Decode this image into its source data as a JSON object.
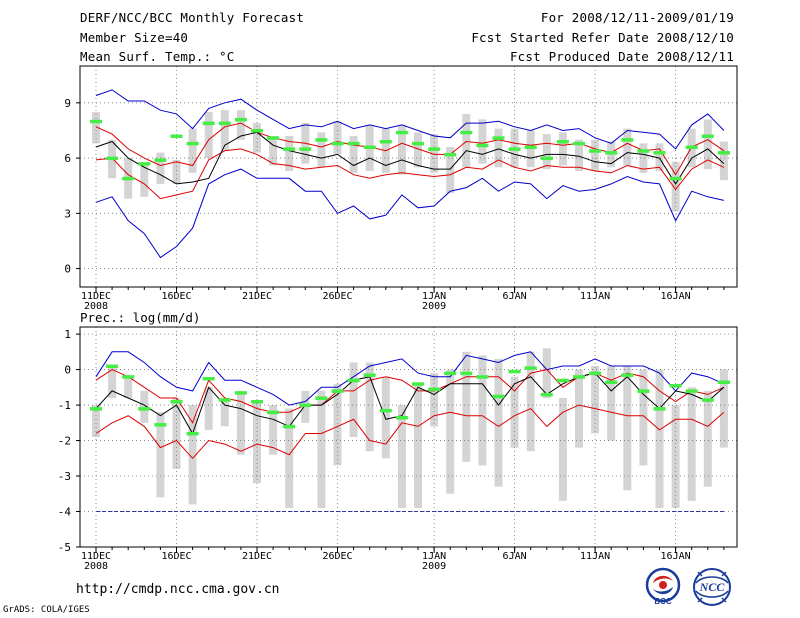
{
  "header": {
    "title": "DERF/NCC/BCC Monthly Forecast",
    "member_size": "Member Size=40",
    "variable": "Mean Surf. Temp.: °C",
    "period": "For 2008/12/11-2009/01/19",
    "started": "Fcst Started Refer Date 2008/12/10",
    "produced": "Fcst Produced Date 2008/12/11"
  },
  "footer": {
    "url": "http://cmdp.ncc.cma.gov.cn",
    "grads": "GrADS: COLA/IGES",
    "logo_left": "BCC",
    "logo_right": "NCC"
  },
  "colors": {
    "max_min": "#0000cc",
    "p25_p75": "#dd0000",
    "mean": "#000000",
    "box": "#d4d4d4",
    "obs": "#44ee44",
    "ref": "#3333aa"
  },
  "chart_data": [
    {
      "type": "line",
      "title": "Mean Surf. Temp.: °C",
      "ylim": [
        -1,
        11
      ],
      "yticks": [
        0,
        3,
        6,
        9
      ],
      "xticks": [
        {
          "day": 0,
          "label": "11DEC",
          "sub": "2008"
        },
        {
          "day": 5,
          "label": "16DEC"
        },
        {
          "day": 10,
          "label": "21DEC"
        },
        {
          "day": 15,
          "label": "26DEC"
        },
        {
          "day": 21,
          "label": "1JAN",
          "sub": "2009"
        },
        {
          "day": 26,
          "label": "6JAN"
        },
        {
          "day": 31,
          "label": "11JAN"
        },
        {
          "day": 36,
          "label": "16JAN"
        }
      ],
      "grid": true,
      "series": [
        {
          "name": "max",
          "values": [
            9.4,
            9.7,
            9.1,
            9.1,
            8.6,
            8.4,
            7.6,
            8.7,
            9.0,
            9.2,
            8.6,
            8.1,
            7.6,
            7.8,
            7.7,
            8.0,
            7.6,
            7.8,
            7.6,
            7.8,
            7.5,
            7.2,
            7.1,
            7.9,
            7.9,
            8.0,
            7.7,
            7.5,
            7.8,
            7.5,
            7.6,
            7.1,
            6.8,
            7.5,
            7.4,
            7.3,
            6.5,
            7.8,
            8.4,
            7.5
          ]
        },
        {
          "name": "p75",
          "values": [
            7.7,
            7.3,
            6.5,
            6.0,
            5.6,
            5.8,
            5.6,
            7.0,
            7.7,
            7.9,
            7.4,
            7.1,
            6.9,
            6.8,
            6.6,
            6.9,
            6.7,
            6.6,
            6.4,
            6.8,
            6.5,
            6.2,
            6.2,
            6.9,
            6.8,
            7.0,
            6.8,
            6.7,
            6.8,
            6.7,
            6.8,
            6.5,
            6.3,
            6.8,
            6.4,
            6.5,
            5.1,
            6.6,
            7.0,
            6.4
          ]
        },
        {
          "name": "mean",
          "values": [
            6.6,
            6.9,
            6.0,
            5.5,
            5.1,
            4.6,
            4.7,
            4.9,
            6.7,
            7.2,
            7.4,
            6.7,
            6.4,
            6.2,
            6.0,
            6.2,
            5.6,
            6.0,
            5.6,
            5.9,
            5.6,
            5.4,
            5.4,
            6.4,
            6.2,
            6.5,
            6.2,
            6.0,
            6.2,
            6.2,
            6.1,
            5.8,
            5.7,
            6.3,
            6.2,
            6.0,
            4.6,
            6.0,
            6.5,
            5.7
          ]
        },
        {
          "name": "p25",
          "values": [
            5.9,
            6.0,
            5.1,
            4.6,
            3.8,
            4.0,
            4.2,
            5.9,
            6.4,
            6.5,
            6.2,
            5.7,
            5.6,
            5.4,
            5.5,
            5.6,
            5.1,
            4.9,
            5.1,
            5.2,
            5.1,
            5.0,
            5.1,
            5.5,
            5.4,
            5.9,
            5.5,
            5.3,
            5.6,
            5.5,
            5.5,
            5.3,
            5.2,
            5.6,
            5.4,
            5.5,
            4.3,
            5.4,
            5.9,
            5.5
          ]
        },
        {
          "name": "min",
          "values": [
            3.6,
            3.9,
            2.6,
            1.9,
            0.6,
            1.2,
            2.2,
            4.6,
            5.1,
            5.4,
            4.9,
            4.9,
            4.9,
            4.2,
            4.2,
            3.0,
            3.4,
            2.7,
            2.9,
            4.0,
            3.3,
            3.4,
            4.2,
            4.4,
            4.9,
            4.2,
            4.7,
            4.6,
            3.8,
            4.5,
            4.2,
            4.3,
            4.6,
            5.0,
            4.7,
            4.6,
            2.6,
            4.2,
            3.9,
            3.7
          ]
        },
        {
          "name": "box_top",
          "values": [
            8.5,
            7.0,
            6.0,
            5.6,
            6.3,
            5.9,
            7.6,
            8.5,
            8.6,
            8.6,
            7.9,
            7.2,
            7.2,
            7.9,
            7.4,
            8.0,
            7.2,
            7.8,
            7.6,
            7.8,
            7.4,
            7.3,
            6.6,
            8.4,
            8.1,
            7.6,
            7.6,
            7.5,
            7.3,
            7.4,
            7.0,
            7.0,
            6.9,
            7.6,
            6.8,
            6.8,
            5.8,
            7.6,
            8.1,
            6.9
          ]
        },
        {
          "name": "box_bottom",
          "values": [
            6.8,
            4.9,
            3.8,
            3.9,
            4.6,
            4.6,
            5.2,
            6.0,
            6.4,
            7.0,
            6.3,
            5.6,
            5.3,
            5.7,
            5.5,
            6.2,
            5.2,
            5.3,
            5.2,
            5.1,
            5.5,
            5.2,
            4.1,
            5.5,
            5.7,
            5.5,
            5.5,
            5.5,
            5.4,
            5.6,
            5.3,
            5.3,
            5.5,
            5.6,
            5.2,
            5.3,
            3.1,
            5.5,
            5.4,
            4.8
          ]
        },
        {
          "name": "obs",
          "values": [
            8.0,
            6.0,
            4.9,
            5.7,
            5.9,
            7.2,
            6.8,
            7.9,
            7.9,
            8.1,
            7.5,
            7.1,
            6.5,
            6.5,
            7.0,
            6.8,
            6.8,
            6.6,
            6.9,
            7.4,
            6.8,
            6.5,
            6.2,
            7.4,
            6.7,
            7.1,
            6.5,
            6.6,
            6.0,
            6.9,
            6.8,
            6.4,
            6.3,
            7.0,
            6.4,
            6.3,
            4.9,
            6.6,
            7.2,
            6.3
          ]
        }
      ]
    },
    {
      "type": "line",
      "title": "Prec.: log(mm/d)",
      "ylim": [
        -5,
        1.2
      ],
      "yticks": [
        -5,
        -4,
        -3,
        -2,
        -1,
        0,
        1
      ],
      "xticks": [
        {
          "day": 0,
          "label": "11DEC",
          "sub": "2008"
        },
        {
          "day": 5,
          "label": "16DEC"
        },
        {
          "day": 10,
          "label": "21DEC"
        },
        {
          "day": 15,
          "label": "26DEC"
        },
        {
          "day": 21,
          "label": "1JAN",
          "sub": "2009"
        },
        {
          "day": 26,
          "label": "6JAN"
        },
        {
          "day": 31,
          "label": "11JAN"
        },
        {
          "day": 36,
          "label": "16JAN"
        }
      ],
      "reference_line": -4,
      "grid": true,
      "series": [
        {
          "name": "max",
          "values": [
            -0.2,
            0.5,
            0.5,
            0.2,
            -0.2,
            -0.5,
            -0.6,
            0.2,
            -0.3,
            -0.3,
            -0.5,
            -0.7,
            -1.0,
            -0.9,
            -0.5,
            -0.5,
            -0.2,
            0.1,
            0.2,
            0.3,
            -0.1,
            -0.2,
            -0.2,
            0.4,
            0.3,
            0.2,
            0.4,
            0.5,
            0.0,
            0.1,
            0.1,
            0.3,
            0.1,
            0.1,
            0.1,
            -0.1,
            -0.6,
            -0.1,
            -0.2,
            -0.4
          ]
        },
        {
          "name": "p75",
          "values": [
            -0.3,
            0.0,
            -0.2,
            -0.5,
            -0.8,
            -0.8,
            -1.5,
            -0.3,
            -0.8,
            -0.9,
            -1.1,
            -1.2,
            -1.2,
            -1.0,
            -1.0,
            -0.6,
            -0.6,
            -0.3,
            -0.2,
            -0.3,
            -0.6,
            -0.6,
            -0.4,
            -0.2,
            -0.2,
            -0.2,
            -0.6,
            -0.1,
            0.0,
            -0.5,
            -0.2,
            -0.1,
            -0.3,
            -0.1,
            -0.2,
            -0.6,
            -0.9,
            -0.6,
            -0.7,
            -0.5
          ]
        },
        {
          "name": "mean",
          "values": [
            -1.1,
            -0.6,
            -0.8,
            -1.0,
            -1.3,
            -1.0,
            -1.8,
            -0.5,
            -1.0,
            -1.1,
            -1.3,
            -1.4,
            -1.6,
            -1.0,
            -1.0,
            -0.7,
            -0.3,
            -0.2,
            -1.4,
            -1.3,
            -0.5,
            -0.7,
            -0.4,
            -0.4,
            -0.4,
            -1.0,
            -0.4,
            -0.2,
            -0.7,
            -0.4,
            -0.2,
            -0.1,
            -0.6,
            -0.2,
            -0.7,
            -1.1,
            -0.6,
            -0.7,
            -0.9,
            -0.5
          ]
        },
        {
          "name": "p25",
          "values": [
            -1.8,
            -1.5,
            -1.3,
            -1.6,
            -2.2,
            -2.0,
            -2.5,
            -2.0,
            -2.1,
            -2.3,
            -2.1,
            -2.2,
            -2.4,
            -1.8,
            -1.8,
            -1.6,
            -1.4,
            -2.0,
            -2.1,
            -1.5,
            -1.6,
            -1.3,
            -1.2,
            -1.3,
            -1.3,
            -1.6,
            -1.3,
            -1.1,
            -1.6,
            -1.2,
            -1.0,
            -1.1,
            -1.2,
            -1.3,
            -1.3,
            -1.7,
            -1.4,
            -1.4,
            -1.6,
            -1.2
          ]
        },
        {
          "name": "box_top",
          "values": [
            -1.0,
            0.1,
            -0.2,
            -0.6,
            -1.2,
            -0.8,
            -1.0,
            -0.5,
            -0.8,
            -0.7,
            -0.9,
            -1.0,
            -1.1,
            -0.6,
            -0.6,
            -0.4,
            0.2,
            0.2,
            -0.2,
            -1.0,
            -0.4,
            -0.1,
            0.0,
            0.5,
            0.4,
            0.3,
            -0.2,
            0.5,
            0.6,
            -0.8,
            0.0,
            0.1,
            0.1,
            0.1,
            0.0,
            0.0,
            -1.0,
            -0.5,
            -0.6,
            0.0
          ]
        },
        {
          "name": "box_bottom",
          "values": [
            -1.9,
            -0.8,
            -0.8,
            -1.5,
            -3.6,
            -2.8,
            -3.8,
            -1.7,
            -1.6,
            -2.4,
            -3.2,
            -2.4,
            -3.9,
            -1.5,
            -3.9,
            -2.7,
            -1.9,
            -2.3,
            -2.5,
            -3.9,
            -3.9,
            -1.6,
            -3.5,
            -2.6,
            -2.7,
            -3.3,
            -2.2,
            -2.3,
            -0.8,
            -3.7,
            -2.2,
            -1.8,
            -2.0,
            -3.4,
            -2.7,
            -3.9,
            -3.9,
            -3.7,
            -3.3,
            -2.2
          ]
        },
        {
          "name": "obs",
          "values": [
            -1.1,
            0.1,
            -0.2,
            -1.1,
            -1.55,
            -0.9,
            -1.8,
            -0.25,
            -0.85,
            -0.65,
            -0.9,
            -1.2,
            -1.6,
            -1.0,
            -0.8,
            -0.6,
            -0.3,
            -0.15,
            -1.15,
            -1.35,
            -0.4,
            -0.55,
            -0.1,
            -0.1,
            -0.2,
            -0.75,
            -0.05,
            0.05,
            -0.7,
            -0.3,
            -0.2,
            -0.1,
            -0.35,
            -0.15,
            -0.6,
            -1.1,
            -0.45,
            -0.6,
            -0.85,
            -0.35
          ]
        }
      ]
    }
  ]
}
